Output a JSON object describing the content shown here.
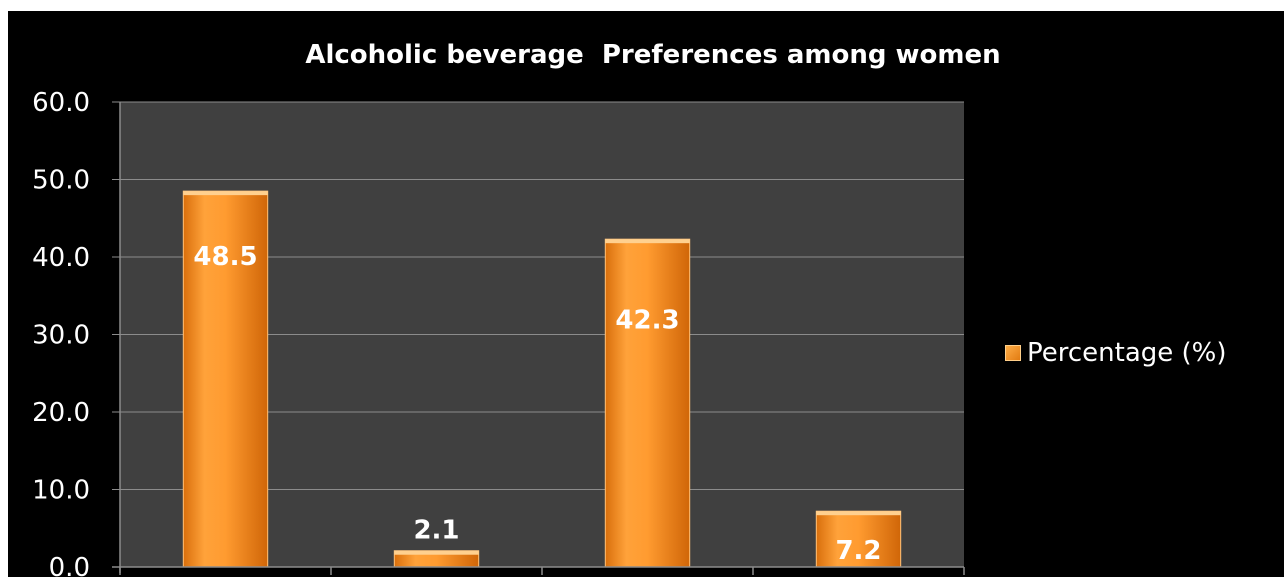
{
  "chart_data": {
    "type": "bar",
    "title": "Alcoholic beverage  Preferences among women",
    "categories": [
      "",
      "",
      "",
      ""
    ],
    "series": [
      {
        "name": "Percentage (%)",
        "values": [
          48.5,
          2.1,
          42.3,
          7.2
        ]
      }
    ],
    "data_labels": [
      "48.5",
      "2.1",
      "42.3",
      "7.2"
    ],
    "ylim": [
      0,
      60
    ],
    "yticks": [
      "0.0",
      "10.0",
      "20.0",
      "30.0",
      "40.0",
      "50.0",
      "60.0"
    ],
    "grid": true,
    "legend_position": "right",
    "colors": {
      "background": "#000000",
      "plot_area": "#404040",
      "bar": "#f7901e",
      "gridline": "#8c8c8c"
    }
  }
}
